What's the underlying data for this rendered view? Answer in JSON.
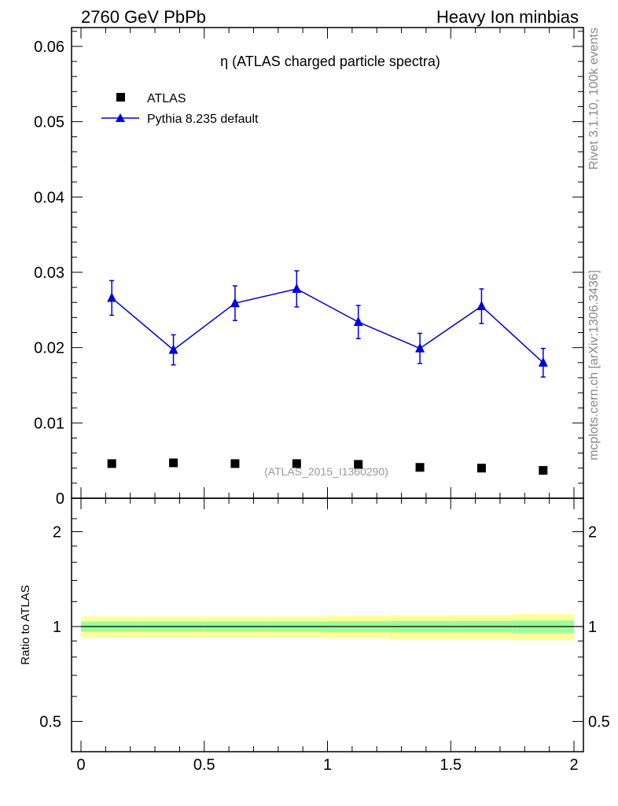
{
  "header": {
    "left": "2760 GeV PbPb",
    "right": "Heavy Ion minbias"
  },
  "side_labels": {
    "rivet": "Rivet 3.1.10,  100k events",
    "mcplots": "mcplots.cern.ch [arXiv:1306.3436]"
  },
  "chart_data": [
    {
      "type": "scatter",
      "panel": "main",
      "title": "η (ATLAS charged particle spectra)",
      "watermark": "(ATLAS_2015_I1360290)",
      "xlim": [
        0,
        2
      ],
      "ylim": [
        0,
        0.0625
      ],
      "y_ticks": [
        "0",
        "0.01",
        "0.02",
        "0.03",
        "0.04",
        "0.05",
        "0.06"
      ],
      "series": [
        {
          "name": "ATLAS",
          "marker": "square",
          "color": "#000000",
          "x": [
            0.125,
            0.375,
            0.625,
            0.875,
            1.125,
            1.375,
            1.625,
            1.875
          ],
          "y": [
            0.0046,
            0.0047,
            0.0046,
            0.0046,
            0.0045,
            0.0041,
            0.004,
            0.0037
          ]
        },
        {
          "name": "Pythia 8.235 default",
          "marker": "triangle",
          "color": "#0000dd",
          "x": [
            0.125,
            0.375,
            0.625,
            0.875,
            1.125,
            1.375,
            1.625,
            1.875
          ],
          "y": [
            0.0266,
            0.0197,
            0.0259,
            0.0278,
            0.0234,
            0.0199,
            0.0255,
            0.018
          ],
          "yerr": [
            0.0023,
            0.002,
            0.0023,
            0.0024,
            0.0022,
            0.002,
            0.0023,
            0.0019
          ]
        }
      ]
    },
    {
      "type": "area",
      "panel": "ratio",
      "ylabel": "Ratio to ATLAS",
      "xlim": [
        0,
        2
      ],
      "ylim": [
        0.35,
        2.25
      ],
      "y_ticks": [
        "0.5",
        "1",
        "2"
      ],
      "x_ticks": [
        "0",
        "0.5",
        "1",
        "1.5",
        "2"
      ],
      "bands": {
        "x_edges": [
          0,
          0.25,
          0.5,
          0.75,
          1.0,
          1.25,
          1.5,
          1.75,
          2.0
        ],
        "yellow_colour": "#ffff99",
        "green_colour": "#99ff99",
        "yellow_lo": [
          0.925,
          0.925,
          0.925,
          0.925,
          0.918,
          0.912,
          0.912,
          0.905
        ],
        "yellow_hi": [
          1.075,
          1.075,
          1.075,
          1.075,
          1.08,
          1.085,
          1.088,
          1.095
        ],
        "green_lo": [
          0.962,
          0.962,
          0.962,
          0.962,
          0.96,
          0.958,
          0.958,
          0.955
        ],
        "green_hi": [
          1.038,
          1.038,
          1.038,
          1.038,
          1.04,
          1.042,
          1.042,
          1.045
        ]
      }
    }
  ]
}
